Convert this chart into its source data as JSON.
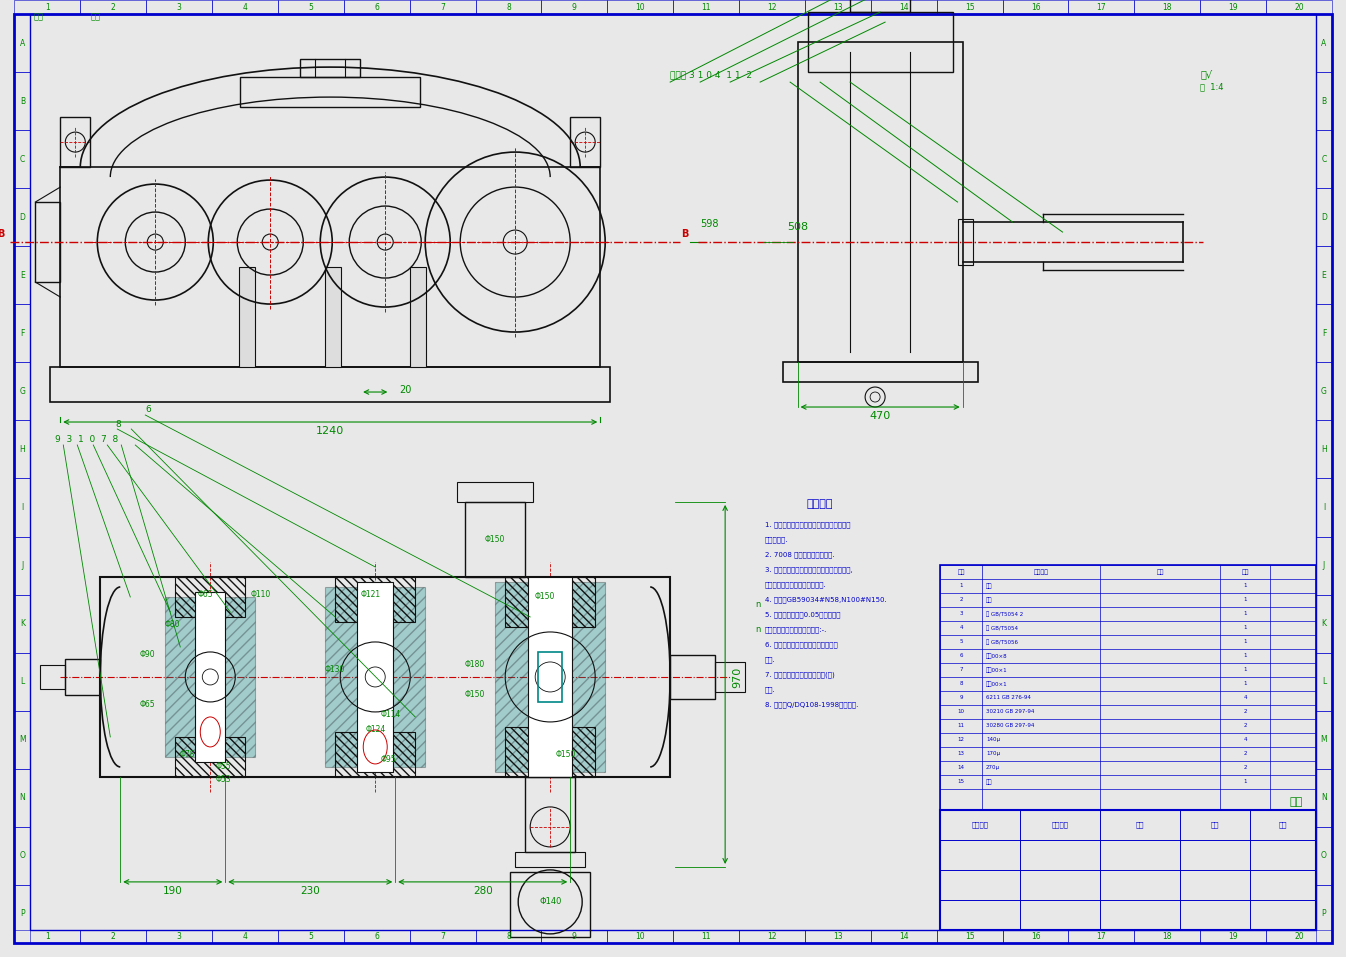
{
  "bg_color": "#e8e8e8",
  "paper_color": "#f5f5f5",
  "border_color": "#0000cc",
  "green_color": "#008800",
  "dark_blue": "#000088",
  "red_color": "#cc0000",
  "cyan_color": "#008888",
  "black": "#111111",
  "gray": "#666666",
  "note_lines": [
    "1. 筱体与筱盖配合面间不加任何呗片，但允",
    "许涂密封胶.",
    "2. 7008 轴承采用脂润滑润滑.",
    "3. 油封处涂适量黄油，以防漏油，保持密封,",
    "接触面，轴径跳动量，保持联联.",
    "4. 润滑用GB59034#N58,N100#N150.",
    "5. 减速器外壁，以0.05毫米涂磁漆",
    "调好位置对机构，正常确设定:-.",
    "6. 滚动轴承采用钓基润滑脂，填充量",
    "填充.",
    "7. 其他，相关证，主中中通过(图)",
    "主图.",
    "8. 加油参Q/DQ108-1998标准参照."
  ],
  "bom_data": [
    [
      "1",
      "筱体",
      "",
      "1"
    ],
    [
      "2",
      "筱盖",
      "",
      "1"
    ],
    [
      "3",
      "油 GB/T5054 2",
      "",
      "1"
    ],
    [
      "4",
      "油 GB/T5054",
      "",
      "1"
    ],
    [
      "5",
      "油 GB/T5056",
      "",
      "1"
    ],
    [
      "6",
      "谔母00×8",
      "",
      "1"
    ],
    [
      "7",
      "谔母00×1",
      "",
      "1"
    ],
    [
      "8",
      "谔母00×1",
      "",
      "1"
    ],
    [
      "9",
      "6211 GB 276-94",
      "",
      "4"
    ],
    [
      "10",
      "30210 GB 297-94",
      "",
      "2"
    ],
    [
      "11",
      "30280 GB 297-94",
      "",
      "2"
    ],
    [
      "12",
      "140μ",
      "",
      "4"
    ],
    [
      "13",
      "170μ",
      "",
      "2"
    ],
    [
      "14",
      "270μ",
      "",
      "2"
    ],
    [
      "15",
      "油封",
      "",
      "1"
    ]
  ]
}
